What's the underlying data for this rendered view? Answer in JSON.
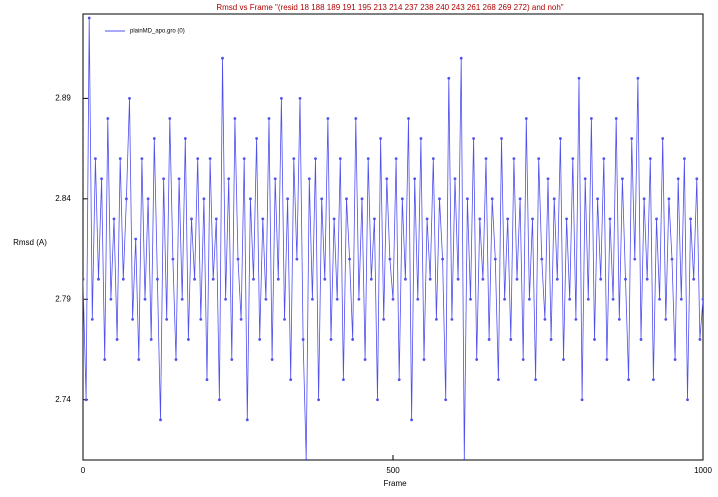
{
  "chart_data": {
    "type": "line",
    "title": "Rmsd vs Frame \"(resid 18 188 189 191 195 213 214 237 238 240 243 261 268 269 272) and noh\"",
    "xlabel": "Frame",
    "ylabel": "Rmsd (A)",
    "xlim": [
      0,
      1000
    ],
    "xticks": [
      0,
      500,
      1000
    ],
    "ylim": [
      2.71,
      2.932
    ],
    "yticks": [
      2.74,
      2.79,
      2.84,
      2.89
    ],
    "grid": false,
    "legend": "upper left",
    "x": [
      0,
      5,
      10,
      15,
      20,
      25,
      30,
      35,
      40,
      45,
      50,
      55,
      60,
      65,
      70,
      75,
      80,
      85,
      90,
      95,
      100,
      105,
      110,
      115,
      120,
      125,
      130,
      135,
      140,
      145,
      150,
      155,
      160,
      165,
      170,
      175,
      180,
      185,
      190,
      195,
      200,
      205,
      210,
      215,
      220,
      225,
      230,
      235,
      240,
      245,
      250,
      255,
      260,
      265,
      270,
      275,
      280,
      285,
      290,
      295,
      300,
      305,
      310,
      315,
      320,
      325,
      330,
      335,
      340,
      345,
      350,
      355,
      360,
      365,
      370,
      375,
      380,
      385,
      390,
      395,
      400,
      405,
      410,
      415,
      420,
      425,
      430,
      435,
      440,
      445,
      450,
      455,
      460,
      465,
      470,
      475,
      480,
      485,
      490,
      495,
      500,
      505,
      510,
      515,
      520,
      525,
      530,
      535,
      540,
      545,
      550,
      555,
      560,
      565,
      570,
      575,
      580,
      585,
      590,
      595,
      600,
      605,
      610,
      615,
      620,
      625,
      630,
      635,
      640,
      645,
      650,
      655,
      660,
      665,
      670,
      675,
      680,
      685,
      690,
      695,
      700,
      705,
      710,
      715,
      720,
      725,
      730,
      735,
      740,
      745,
      750,
      755,
      760,
      765,
      770,
      775,
      780,
      785,
      790,
      795,
      800,
      805,
      810,
      815,
      820,
      825,
      830,
      835,
      840,
      845,
      850,
      855,
      860,
      865,
      870,
      875,
      880,
      885,
      890,
      895,
      900,
      905,
      910,
      915,
      920,
      925,
      930,
      935,
      940,
      945,
      950,
      955,
      960,
      965,
      970,
      975,
      980,
      985,
      990,
      995,
      1000
    ],
    "series": [
      {
        "name": "plainMD_apo.gro (0)",
        "color": "#5050ee",
        "values": [
          2.8,
          2.74,
          2.93,
          2.78,
          2.86,
          2.8,
          2.85,
          2.76,
          2.88,
          2.79,
          2.83,
          2.77,
          2.86,
          2.8,
          2.84,
          2.89,
          2.78,
          2.82,
          2.76,
          2.86,
          2.79,
          2.84,
          2.77,
          2.87,
          2.8,
          2.73,
          2.85,
          2.78,
          2.88,
          2.81,
          2.76,
          2.85,
          2.79,
          2.87,
          2.77,
          2.83,
          2.8,
          2.86,
          2.78,
          2.84,
          2.75,
          2.86,
          2.8,
          2.83,
          2.74,
          2.91,
          2.79,
          2.85,
          2.76,
          2.88,
          2.81,
          2.78,
          2.86,
          2.73,
          2.84,
          2.8,
          2.87,
          2.77,
          2.83,
          2.79,
          2.88,
          2.76,
          2.85,
          2.8,
          2.89,
          2.78,
          2.84,
          2.75,
          2.86,
          2.81,
          2.89,
          2.77,
          2.71,
          2.85,
          2.79,
          2.86,
          2.74,
          2.84,
          2.8,
          2.88,
          2.77,
          2.83,
          2.79,
          2.86,
          2.75,
          2.84,
          2.81,
          2.77,
          2.88,
          2.79,
          2.84,
          2.76,
          2.86,
          2.8,
          2.83,
          2.74,
          2.87,
          2.78,
          2.85,
          2.81,
          2.79,
          2.86,
          2.75,
          2.84,
          2.8,
          2.88,
          2.73,
          2.85,
          2.79,
          2.87,
          2.76,
          2.83,
          2.8,
          2.86,
          2.78,
          2.84,
          2.81,
          2.74,
          2.9,
          2.78,
          2.85,
          2.8,
          2.91,
          2.71,
          2.84,
          2.79,
          2.87,
          2.76,
          2.83,
          2.8,
          2.86,
          2.77,
          2.84,
          2.81,
          2.75,
          2.87,
          2.79,
          2.83,
          2.77,
          2.86,
          2.8,
          2.84,
          2.76,
          2.88,
          2.79,
          2.83,
          2.75,
          2.86,
          2.81,
          2.78,
          2.85,
          2.77,
          2.84,
          2.8,
          2.87,
          2.76,
          2.83,
          2.79,
          2.86,
          2.78,
          2.9,
          2.74,
          2.85,
          2.79,
          2.88,
          2.77,
          2.84,
          2.8,
          2.86,
          2.76,
          2.83,
          2.79,
          2.88,
          2.78,
          2.85,
          2.8,
          2.75,
          2.87,
          2.81,
          2.9,
          2.77,
          2.84,
          2.8,
          2.86,
          2.75,
          2.83,
          2.79,
          2.87,
          2.78,
          2.84,
          2.81,
          2.76,
          2.85,
          2.79,
          2.86,
          2.74,
          2.83,
          2.8,
          2.85,
          2.77,
          2.79
        ]
      }
    ]
  }
}
